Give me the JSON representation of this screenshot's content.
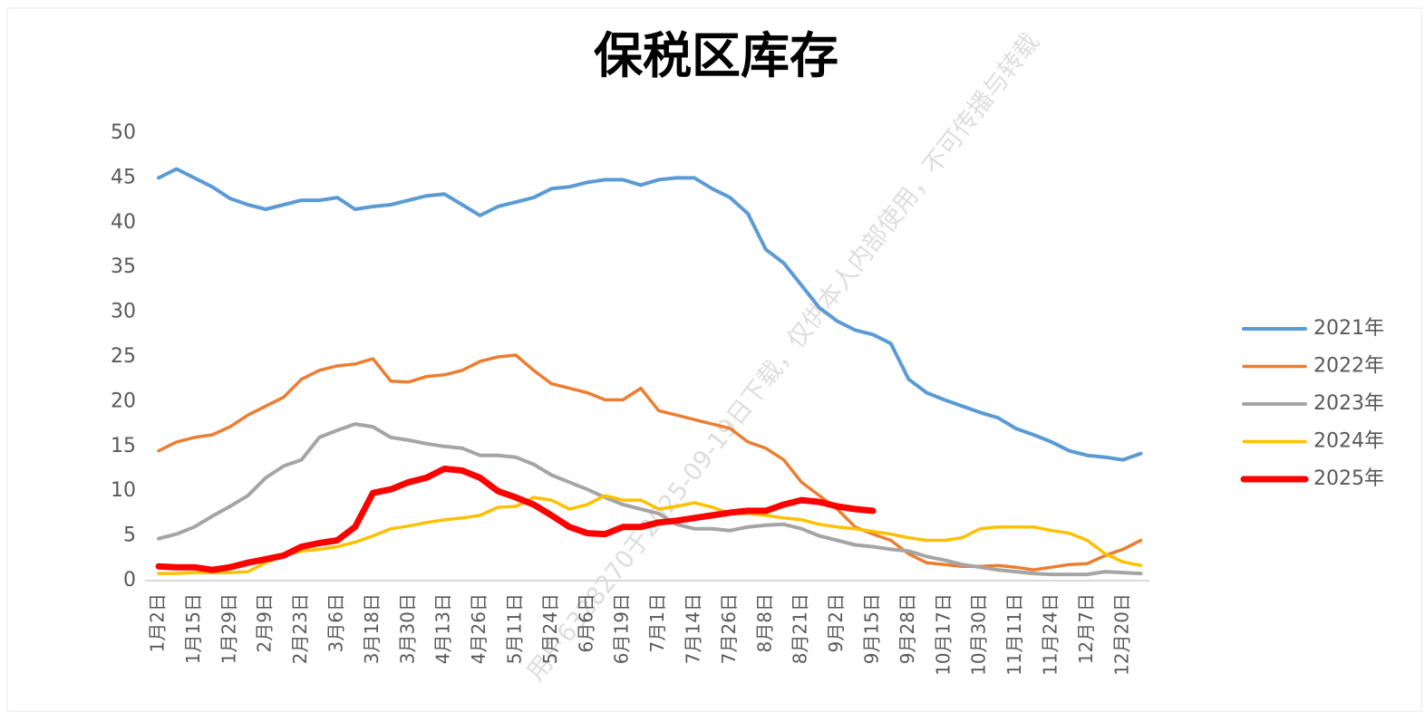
{
  "chart_data": {
    "type": "line",
    "title": "保税区库存",
    "categories": [
      "1月2日",
      null,
      "1月15日",
      null,
      "1月29日",
      null,
      "2月9日",
      null,
      "2月23日",
      null,
      "3月6日",
      null,
      "3月18日",
      null,
      "3月30日",
      null,
      "4月13日",
      null,
      "4月26日",
      null,
      "5月11日",
      null,
      "5月24日",
      null,
      "6月6日",
      null,
      "6月19日",
      null,
      "7月1日",
      null,
      "7月14日",
      null,
      "7月26日",
      null,
      "8月8日",
      null,
      "8月21日",
      null,
      "9月2日",
      null,
      "9月15日",
      null,
      "9月28日",
      null,
      "10月17日",
      null,
      "10月30日",
      null,
      "11月11日",
      null,
      "11月24日",
      null,
      "12月7日",
      null,
      "12月20日",
      null
    ],
    "series": [
      {
        "name": "2021年",
        "color": "#5b9bd5",
        "width": 4,
        "values": [
          45,
          46,
          45,
          44,
          42.7,
          42,
          41.5,
          42,
          42.5,
          42.5,
          42.8,
          41.5,
          41.8,
          42,
          42.5,
          43,
          43.2,
          42,
          40.8,
          41.8,
          42.3,
          42.8,
          43.8,
          44,
          44.5,
          44.8,
          44.8,
          44.2,
          44.8,
          45,
          45,
          43.8,
          42.8,
          41,
          37,
          35.5,
          33,
          30.5,
          29,
          28,
          27.5,
          26.5,
          22.5,
          21,
          20.2,
          19.5,
          18.8,
          18.2,
          17,
          16.3,
          15.5,
          14.5,
          14,
          13.8,
          13.5,
          14.2
        ]
      },
      {
        "name": "2022年",
        "color": "#ed7d31",
        "width": 3.5,
        "values": [
          14.5,
          15.5,
          16,
          16.3,
          17.2,
          18.5,
          19.5,
          20.5,
          22.5,
          23.5,
          24,
          24.2,
          24.8,
          22.3,
          22.2,
          22.8,
          23,
          23.5,
          24.5,
          25,
          25.2,
          23.5,
          22,
          21.5,
          21,
          20.2,
          20.2,
          21.5,
          19,
          18.5,
          18,
          17.5,
          17,
          15.5,
          14.8,
          13.5,
          11,
          9.5,
          8,
          6,
          5.2,
          4.5,
          3,
          2,
          1.8,
          1.6,
          1.6,
          1.7,
          1.5,
          1.2,
          1.5,
          1.8,
          1.9,
          2.8,
          3.5,
          4.5
        ]
      },
      {
        "name": "2023年",
        "color": "#a5a5a5",
        "width": 4,
        "values": [
          4.7,
          5.2,
          6,
          7.2,
          8.3,
          9.5,
          11.5,
          12.8,
          13.5,
          16,
          16.8,
          17.5,
          17.2,
          16,
          15.7,
          15.3,
          15,
          14.8,
          14,
          14,
          13.8,
          13,
          11.8,
          11,
          10.2,
          9.3,
          8.5,
          8,
          7.5,
          6.3,
          5.8,
          5.8,
          5.6,
          6,
          6.2,
          6.3,
          5.8,
          5,
          4.5,
          4,
          3.8,
          3.5,
          3.3,
          2.7,
          2.3,
          1.8,
          1.5,
          1.2,
          1,
          0.8,
          0.7,
          0.7,
          0.7,
          1,
          0.9,
          0.8
        ]
      },
      {
        "name": "2024年",
        "color": "#ffc000",
        "width": 3.5,
        "values": [
          0.8,
          0.8,
          0.9,
          0.9,
          0.9,
          1,
          2,
          2.8,
          3.3,
          3.5,
          3.8,
          4.3,
          5,
          5.8,
          6.1,
          6.5,
          6.8,
          7,
          7.3,
          8.2,
          8.3,
          9.3,
          9,
          8,
          8.5,
          9.5,
          9,
          9,
          8,
          8.3,
          8.7,
          8.2,
          7.5,
          7.5,
          7.3,
          7,
          6.8,
          6.3,
          6,
          5.8,
          5.5,
          5.2,
          4.8,
          4.5,
          4.5,
          4.8,
          5.8,
          6,
          6,
          6,
          5.6,
          5.3,
          4.5,
          3,
          2.1,
          1.7
        ]
      },
      {
        "name": "2025年",
        "color": "#ff0000",
        "width": 7,
        "values": [
          1.6,
          1.5,
          1.5,
          1.2,
          1.5,
          2,
          2.4,
          2.8,
          3.8,
          4.2,
          4.5,
          6,
          9.8,
          10.2,
          11,
          11.5,
          12.5,
          12.3,
          11.5,
          10,
          9.3,
          8.5,
          7.3,
          6,
          5.3,
          5.2,
          6,
          6,
          6.5,
          6.7,
          7,
          7.3,
          7.6,
          7.8,
          7.8,
          8.5,
          9,
          8.8,
          8.3,
          8,
          7.8,
          null,
          null,
          null,
          null,
          null,
          null,
          null,
          null,
          null,
          null,
          null,
          null,
          null,
          null,
          null
        ]
      }
    ],
    "ylim": [
      0,
      50
    ],
    "yticks": [
      0,
      5,
      10,
      15,
      20,
      25,
      30,
      35,
      40,
      45,
      50
    ],
    "grid": false,
    "legend": "right"
  },
  "watermark": "用户6328270于2025-09-19日下载，仅供本人内部使用，不可传播与转载"
}
